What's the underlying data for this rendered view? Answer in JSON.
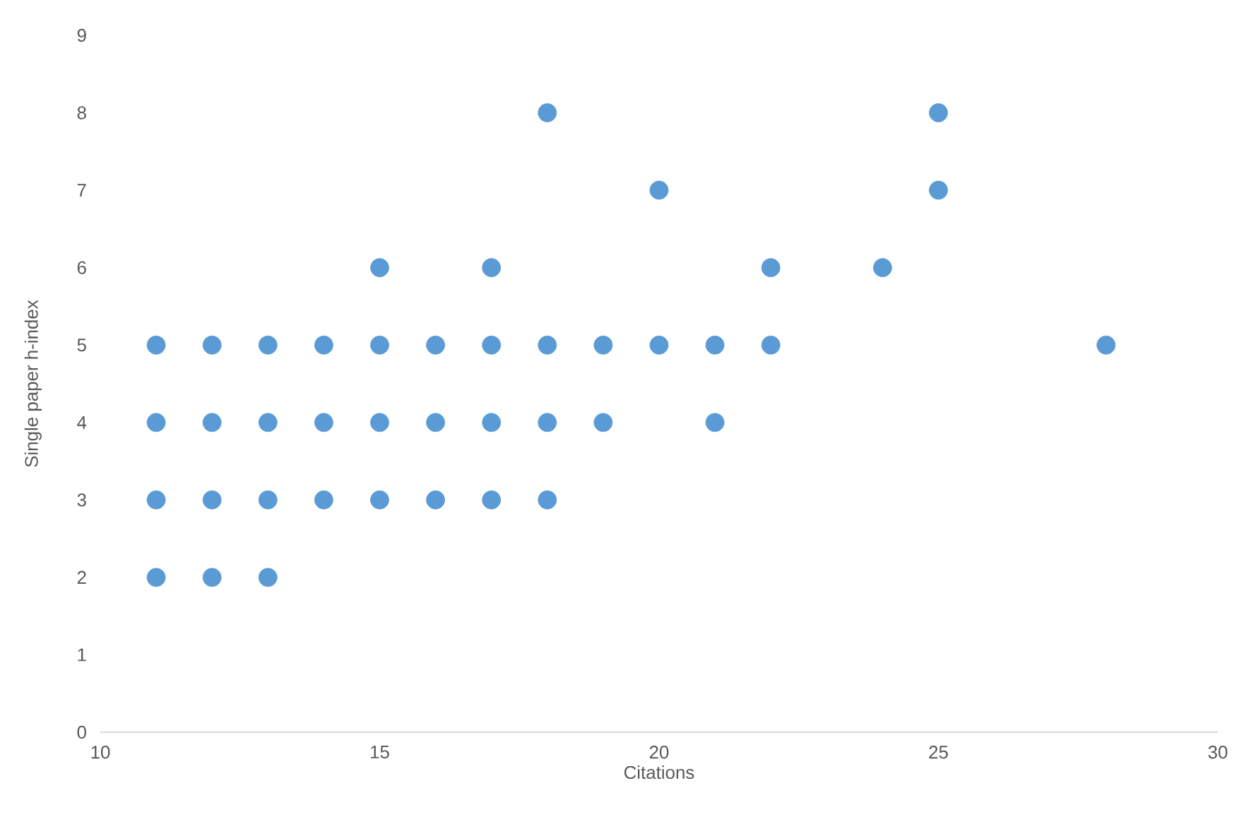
{
  "chart_data": {
    "type": "scatter",
    "xlabel": "Citations",
    "ylabel": "Single paper h-index",
    "xlim": [
      10,
      30
    ],
    "xticks": [
      10,
      15,
      20,
      25,
      30
    ],
    "ylim": [
      0,
      9
    ],
    "yticks": [
      0,
      1,
      2,
      3,
      4,
      5,
      6,
      7,
      8,
      9
    ],
    "marker": "circle",
    "x": [
      11,
      11,
      11,
      11,
      12,
      12,
      12,
      12,
      13,
      13,
      13,
      13,
      14,
      14,
      14,
      15,
      15,
      15,
      15,
      16,
      16,
      16,
      17,
      17,
      17,
      17,
      18,
      18,
      18,
      18,
      19,
      19,
      20,
      20,
      21,
      21,
      22,
      22,
      24,
      25,
      25,
      28
    ],
    "series": [
      {
        "color": "#5b9bd5",
        "values": [
          2,
          3,
          4,
          5,
          2,
          3,
          4,
          5,
          2,
          3,
          4,
          5,
          3,
          4,
          5,
          3,
          4,
          5,
          6,
          3,
          4,
          5,
          3,
          4,
          5,
          6,
          3,
          4,
          5,
          8,
          4,
          5,
          5,
          7,
          4,
          5,
          5,
          6,
          6,
          7,
          8,
          5
        ]
      }
    ]
  }
}
